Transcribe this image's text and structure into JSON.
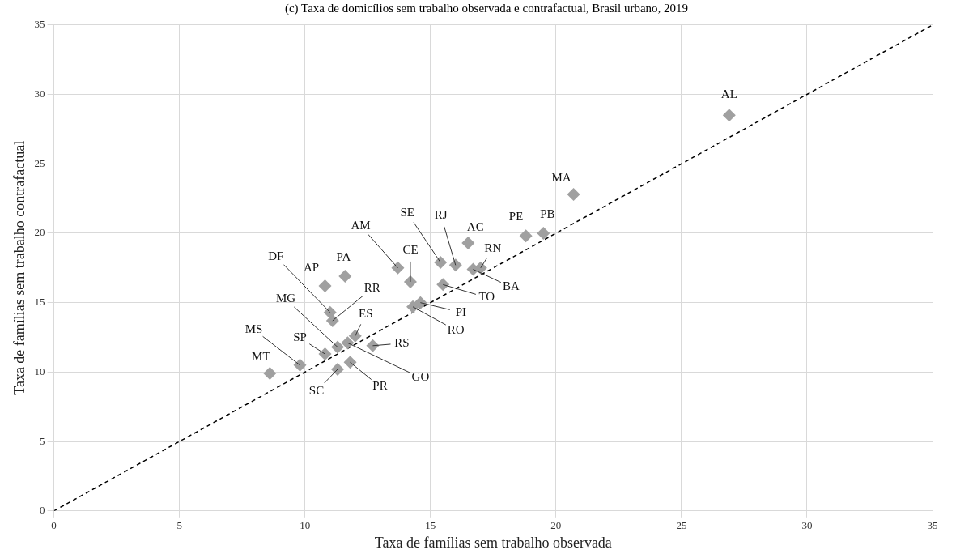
{
  "chart_data": {
    "type": "scatter",
    "title": "(c) Taxa de domicílios sem trabalho observada e contrafactual, Brasil urbano, 2019",
    "xlabel": "Taxa de famílias sem trabalho observada",
    "ylabel": "Taxa de famílias sem trabalho contrafactual",
    "xlim": [
      0,
      35
    ],
    "ylim": [
      0,
      35
    ],
    "xticks": [
      0,
      5,
      10,
      15,
      20,
      25,
      30,
      35
    ],
    "yticks": [
      0,
      5,
      10,
      15,
      20,
      25,
      30,
      35
    ],
    "grid": true,
    "legend": false,
    "marker": "diamond",
    "series": [
      {
        "type": "scatter",
        "color": "#a0a0a0",
        "x": [
          8.6,
          9.8,
          10.8,
          11.3,
          11.3,
          11.8,
          11.7,
          12.0,
          12.7,
          11.0,
          11.1,
          10.8,
          11.6,
          13.7,
          14.2,
          14.6,
          14.3,
          15.5,
          15.4,
          16.0,
          16.7,
          17.0,
          16.5,
          18.8,
          19.5,
          20.7,
          26.9
        ],
        "values": [
          9.9,
          10.5,
          11.3,
          10.2,
          11.8,
          10.7,
          12.1,
          12.6,
          11.9,
          14.3,
          13.7,
          16.2,
          16.9,
          17.5,
          16.5,
          15.0,
          14.7,
          16.3,
          17.9,
          17.7,
          17.4,
          17.5,
          19.3,
          19.8,
          20.0,
          22.8,
          28.5
        ]
      },
      {
        "type": "line",
        "color": "#000000",
        "line_style": "dashed",
        "marker": "none",
        "x": [
          0,
          35
        ],
        "values": [
          0,
          35
        ]
      }
    ],
    "annotations": [
      {
        "text": "MT",
        "x": 8.6,
        "y": 9.9
      },
      {
        "text": "MS",
        "x": 9.8,
        "y": 10.5
      },
      {
        "text": "SP",
        "x": 10.8,
        "y": 11.3
      },
      {
        "text": "SC",
        "x": 11.3,
        "y": 10.2
      },
      {
        "text": "MG",
        "x": 11.3,
        "y": 11.8
      },
      {
        "text": "PR",
        "x": 11.8,
        "y": 10.7
      },
      {
        "text": "GO",
        "x": 11.7,
        "y": 12.1
      },
      {
        "text": "ES",
        "x": 12.0,
        "y": 12.6
      },
      {
        "text": "RS",
        "x": 12.7,
        "y": 11.9
      },
      {
        "text": "DF",
        "x": 11.0,
        "y": 14.3
      },
      {
        "text": "RR",
        "x": 11.1,
        "y": 13.7
      },
      {
        "text": "AP",
        "x": 10.8,
        "y": 16.2
      },
      {
        "text": "PA",
        "x": 11.6,
        "y": 16.9
      },
      {
        "text": "AM",
        "x": 13.7,
        "y": 17.5
      },
      {
        "text": "CE",
        "x": 14.2,
        "y": 16.5
      },
      {
        "text": "PI",
        "x": 14.6,
        "y": 15.0
      },
      {
        "text": "RO",
        "x": 14.3,
        "y": 14.7
      },
      {
        "text": "TO",
        "x": 15.5,
        "y": 16.3
      },
      {
        "text": "SE",
        "x": 15.4,
        "y": 17.9
      },
      {
        "text": "RJ",
        "x": 16.0,
        "y": 17.7
      },
      {
        "text": "BA",
        "x": 16.7,
        "y": 17.4
      },
      {
        "text": "RN",
        "x": 17.0,
        "y": 17.5
      },
      {
        "text": "AC",
        "x": 16.5,
        "y": 19.3
      },
      {
        "text": "PE",
        "x": 18.8,
        "y": 19.8
      },
      {
        "text": "PB",
        "x": 19.5,
        "y": 20.0
      },
      {
        "text": "MA",
        "x": 20.7,
        "y": 22.8
      },
      {
        "text": "AL",
        "x": 26.9,
        "y": 28.5
      }
    ]
  }
}
